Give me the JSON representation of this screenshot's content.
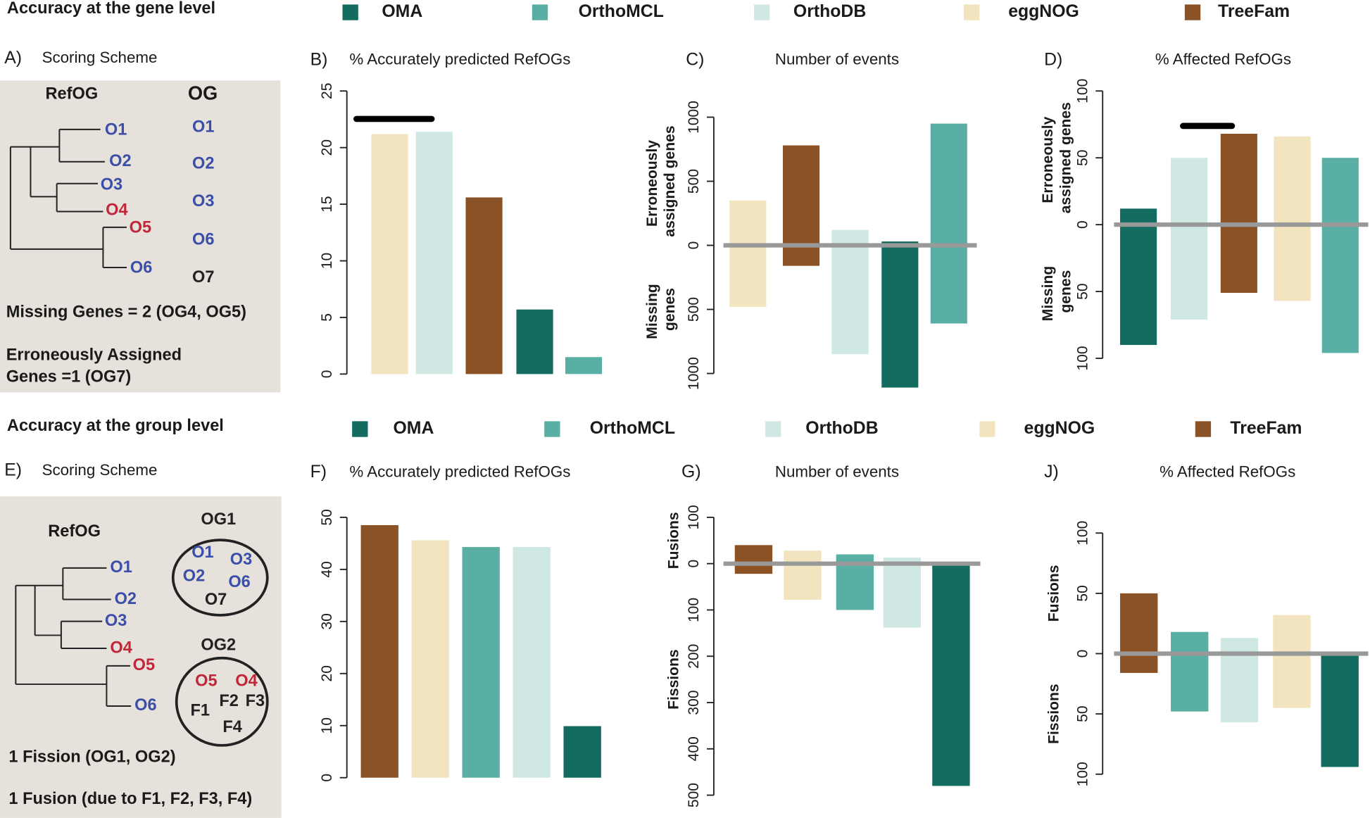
{
  "sections": [
    {
      "title": "Accuracy at the gene level",
      "legend": [
        {
          "name": "OMA",
          "color": "#146b5f"
        },
        {
          "name": "OrthoMCL",
          "color": "#5aafa4"
        },
        {
          "name": "OrthoDB",
          "color": "#cfe8e4"
        },
        {
          "name": "eggNOG",
          "color": "#f3e4c0"
        },
        {
          "name": "TreeFam",
          "color": "#8b5225"
        }
      ]
    },
    {
      "title": "Accuracy at the group level",
      "legend": [
        {
          "name": "OMA",
          "color": "#146b5f"
        },
        {
          "name": "OrthoMCL",
          "color": "#5aafa4"
        },
        {
          "name": "OrthoDB",
          "color": "#cfe8e4"
        },
        {
          "name": "eggNOG",
          "color": "#f3e4c0"
        },
        {
          "name": "TreeFam",
          "color": "#8b5225"
        }
      ]
    }
  ],
  "scheme_gene": {
    "panel": "A)",
    "title": "Scoring Scheme",
    "refog_label": "RefOG",
    "og_label": "OG",
    "refog_leaves": [
      "O1",
      "O2",
      "O3",
      "O4",
      "O5",
      "O6"
    ],
    "og_members": [
      "O1",
      "O2",
      "O3",
      "O6",
      "O7"
    ],
    "notes": [
      "Missing Genes = 2 (OG4, OG5)",
      "Erroneously Assigned",
      "Genes =1 (OG7)"
    ]
  },
  "scheme_group": {
    "panel": "E)",
    "title": "Scoring Scheme",
    "refog_label": "RefOG",
    "refog_leaves": [
      "O1",
      "O2",
      "O3",
      "O4",
      "O5",
      "O6"
    ],
    "groups": [
      {
        "label": "OG1",
        "members": [
          "O1",
          "O3",
          "O2",
          "O6",
          "O7"
        ]
      },
      {
        "label": "OG2",
        "members": [
          "O5",
          "O4",
          "F2",
          "F3",
          "F1",
          "F4"
        ]
      }
    ],
    "notes": [
      "1 Fission (OG1, OG2)",
      "1 Fusion (due to F1, F2, F3, F4)"
    ]
  },
  "chart_data": [
    {
      "type": "bar",
      "panel": "B)",
      "title": "% Accurately predicted RefOGs",
      "categories": [
        null,
        null,
        null,
        null,
        null
      ],
      "colors": [
        "#f3e4c0",
        "#cfe8e4",
        "#8b5225",
        "#146b5f",
        "#5aafa4"
      ],
      "values": [
        21.2,
        21.4,
        15.6,
        5.7,
        1.5
      ],
      "ylim": [
        0,
        25
      ],
      "yticks": [
        0,
        5,
        10,
        15,
        20,
        25
      ]
    },
    {
      "type": "diverging_bar",
      "panel": "C)",
      "title": "Number of events",
      "categories": [
        null,
        null,
        null,
        null,
        null
      ],
      "colors": [
        "#f3e4c0",
        "#8b5225",
        "#cfe8e4",
        "#146b5f",
        "#5aafa4"
      ],
      "series": [
        {
          "name": "Erroneously assigned genes",
          "values": [
            350,
            780,
            120,
            30,
            950
          ]
        },
        {
          "name": "Missing genes",
          "values": [
            -480,
            -160,
            -850,
            -1110,
            -610
          ]
        }
      ],
      "ylim": [
        -1100,
        1000
      ],
      "yticks": [
        {
          "value": -1000,
          "label": "1000"
        },
        {
          "value": -500,
          "label": "500"
        },
        0,
        500,
        1000
      ]
    },
    {
      "type": "diverging_bar",
      "panel": "D)",
      "title": "% Affected RefOGs",
      "categories": [
        null,
        null,
        null,
        null,
        null
      ],
      "colors": [
        "#146b5f",
        "#cfe8e4",
        "#8b5225",
        "#f3e4c0",
        "#5aafa4"
      ],
      "series": [
        {
          "name": "Erroneously assigned genes",
          "values": [
            12,
            50,
            68,
            66,
            50
          ]
        },
        {
          "name": "Missing genes",
          "values": [
            -90,
            -71,
            -51,
            -57,
            -96
          ]
        }
      ],
      "ylim": [
        -100,
        100
      ],
      "yticks": [
        {
          "value": -100,
          "label": "100"
        },
        {
          "value": -50,
          "label": "50"
        },
        0,
        50,
        100
      ]
    },
    {
      "type": "bar",
      "panel": "F)",
      "title": "% Accurately predicted RefOGs",
      "categories": [
        null,
        null,
        null,
        null,
        null
      ],
      "colors": [
        "#8b5225",
        "#f3e4c0",
        "#5aafa4",
        "#cfe8e4",
        "#146b5f"
      ],
      "values": [
        48.5,
        45.6,
        44.3,
        44.3,
        9.9
      ],
      "ylim": [
        0,
        50
      ],
      "yticks": [
        0,
        10,
        20,
        30,
        40,
        50
      ]
    },
    {
      "type": "diverging_bar",
      "panel": "G)",
      "title": "Number of events",
      "categories": [
        null,
        null,
        null,
        null,
        null
      ],
      "colors": [
        "#8b5225",
        "#f3e4c0",
        "#5aafa4",
        "#cfe8e4",
        "#146b5f"
      ],
      "series": [
        {
          "name": "Fusions",
          "values": [
            40,
            28,
            20,
            13,
            0
          ]
        },
        {
          "name": "Fissions",
          "values": [
            -22,
            -78,
            -100,
            -138,
            -480
          ]
        }
      ],
      "ylim": [
        -500,
        100
      ],
      "yticks": [
        {
          "value": -500,
          "label": "500"
        },
        {
          "value": -400,
          "label": "400"
        },
        {
          "value": -300,
          "label": "300"
        },
        {
          "value": -200,
          "label": "200"
        },
        {
          "value": -100,
          "label": "100"
        },
        0,
        100
      ]
    },
    {
      "type": "diverging_bar",
      "panel": "J)",
      "title": "% Affected RefOGs",
      "categories": [
        null,
        null,
        null,
        null,
        null
      ],
      "colors": [
        "#8b5225",
        "#5aafa4",
        "#cfe8e4",
        "#f3e4c0",
        "#146b5f"
      ],
      "series": [
        {
          "name": "Fusions",
          "values": [
            50,
            18,
            13,
            32,
            0
          ]
        },
        {
          "name": "Fissions",
          "values": [
            -16,
            -48,
            -57,
            -45,
            -94
          ]
        }
      ],
      "ylim": [
        -100,
        100
      ],
      "yticks": [
        {
          "value": -100,
          "label": "100"
        },
        {
          "value": -50,
          "label": "50"
        },
        0,
        50,
        100
      ]
    }
  ]
}
